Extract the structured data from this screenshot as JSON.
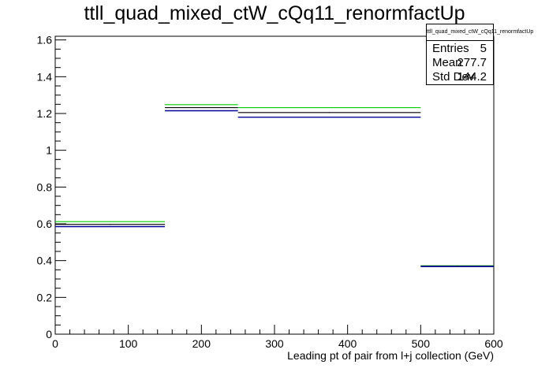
{
  "chart_data": {
    "type": "bar",
    "title": "ttll_quad_mixed_ctW_cQq11_renormfactUp",
    "xlabel": "Leading pt of pair from l+j collection (GeV)",
    "ylabel": "",
    "xlim": [
      0,
      600
    ],
    "ylim": [
      0,
      1.62
    ],
    "x_ticks": [
      0,
      100,
      200,
      300,
      400,
      500,
      600
    ],
    "y_ticks": [
      0,
      0.2,
      0.4,
      0.6,
      0.8,
      1,
      1.2,
      1.4,
      1.6
    ],
    "x_tick_labels": [
      "0",
      "100",
      "200",
      "300",
      "400",
      "500",
      "600"
    ],
    "y_tick_labels": [
      "0",
      "0.2",
      "0.4",
      "0.6",
      "0.8",
      "1",
      "1.2",
      "1.4",
      "1.6"
    ],
    "bin_edges": [
      0,
      150,
      250,
      500,
      600
    ],
    "series": [
      {
        "color": "#00cc00",
        "values": [
          0.612,
          1.248,
          1.232,
          0.372
        ]
      },
      {
        "color": "#000000",
        "values": [
          0.597,
          1.232,
          1.205,
          0.37
        ]
      },
      {
        "color": "#000099",
        "values": [
          0.585,
          1.215,
          1.18,
          0.368
        ]
      }
    ],
    "grid": false,
    "stats_box": {
      "name": "ttll_quad_mixed_ctW_cQq11_renormfactUp",
      "entries_label": "Entries",
      "entries": "5",
      "mean_label": "Mean",
      "mean": "277.7",
      "stddev_label": "Std Dev",
      "stddev": "144.2"
    }
  }
}
